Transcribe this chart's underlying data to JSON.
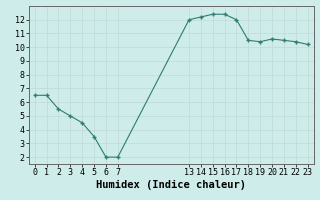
{
  "x": [
    0,
    1,
    2,
    3,
    4,
    5,
    6,
    7,
    13,
    14,
    15,
    16,
    17,
    18,
    19,
    20,
    21,
    22,
    23
  ],
  "y": [
    6.5,
    6.5,
    5.5,
    5.0,
    4.5,
    3.5,
    2.0,
    2.0,
    12.0,
    12.2,
    12.4,
    12.4,
    12.0,
    10.5,
    10.4,
    10.6,
    10.5,
    10.4,
    10.2
  ],
  "line_color": "#2e7d6e",
  "marker_color": "#2e7d6e",
  "bg_color": "#ceecea",
  "grid_major_color": "#c0d8d6",
  "grid_minor_color": "#d5e8e6",
  "xlabel": "Humidex (Indice chaleur)",
  "xlabel_fontsize": 7.5,
  "tick_fontsize": 6,
  "ylim": [
    1.5,
    13.0
  ],
  "yticks": [
    2,
    3,
    4,
    5,
    6,
    7,
    8,
    9,
    10,
    11,
    12
  ],
  "xticks": [
    0,
    1,
    2,
    3,
    4,
    5,
    6,
    7,
    13,
    14,
    15,
    16,
    17,
    18,
    19,
    20,
    21,
    22,
    23
  ],
  "xlim": [
    -0.5,
    23.5
  ]
}
